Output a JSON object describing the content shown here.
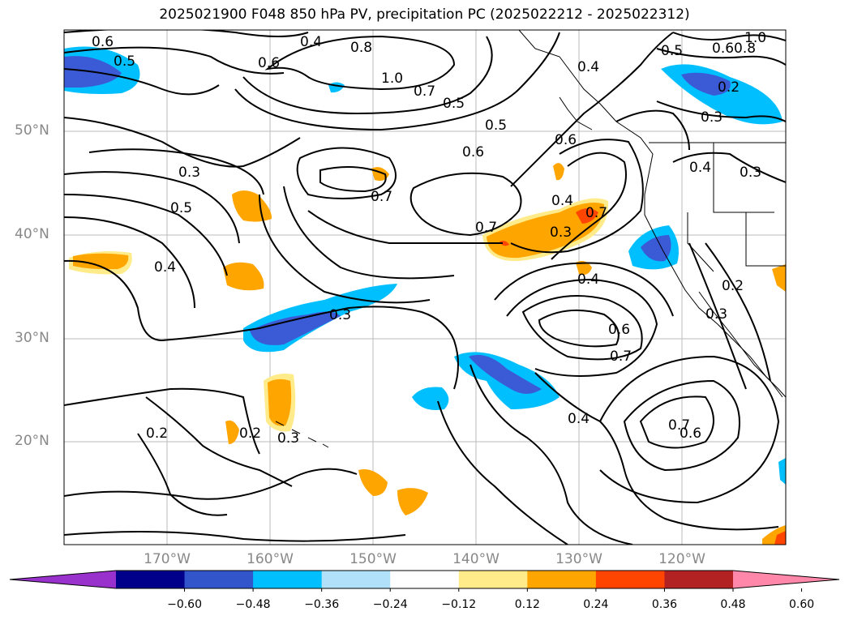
{
  "title": "2025021900 F048 850 hPa PV, precipitation PC (2025022212 - 2025022312)",
  "lat_labels": [
    "50°N",
    "40°N",
    "30°N",
    "20°N"
  ],
  "lon_labels": [
    "170°W",
    "160°W",
    "150°W",
    "140°W",
    "130°W",
    "120°W"
  ],
  "contour_labels": [
    "0.6",
    "0.5",
    "0.4",
    "0.8",
    "0.6",
    "1.0",
    "0.7",
    "0.5",
    "0.5",
    "0.6",
    "0.6",
    "0.4",
    "0.3",
    "0.7",
    "0.7",
    "0.4",
    "0.3",
    "0.7",
    "0.5",
    "0.4",
    "0.3",
    "0.4",
    "0.6",
    "0.7",
    "0.4",
    "0.7",
    "0.6",
    "0.2",
    "0.2",
    "0.3",
    "0.5",
    "0.6",
    "0.8",
    "1.0",
    "0.2",
    "0.3",
    "0.4",
    "0.3",
    "0.2",
    "0.3"
  ],
  "colorbar": {
    "ticks": [
      "−0.60",
      "−0.48",
      "−0.36",
      "−0.24",
      "−0.12",
      "0.12",
      "0.24",
      "0.36",
      "0.48",
      "0.60"
    ],
    "colors": [
      "#9932cc",
      "#00008b",
      "#3355cc",
      "#00bfff",
      "#b0e0fa",
      "#ffffff",
      "#ffeb8a",
      "#ffa500",
      "#ff4500",
      "#b22222",
      "#ff88aa"
    ]
  },
  "colors": {
    "neg_deep": "#3b5bd6",
    "neg_mid": "#00bfff",
    "neg_light": "#b0e0fa",
    "pos_light": "#ffeb8a",
    "pos_mid": "#ffa500",
    "pos_deep": "#ff4500"
  }
}
